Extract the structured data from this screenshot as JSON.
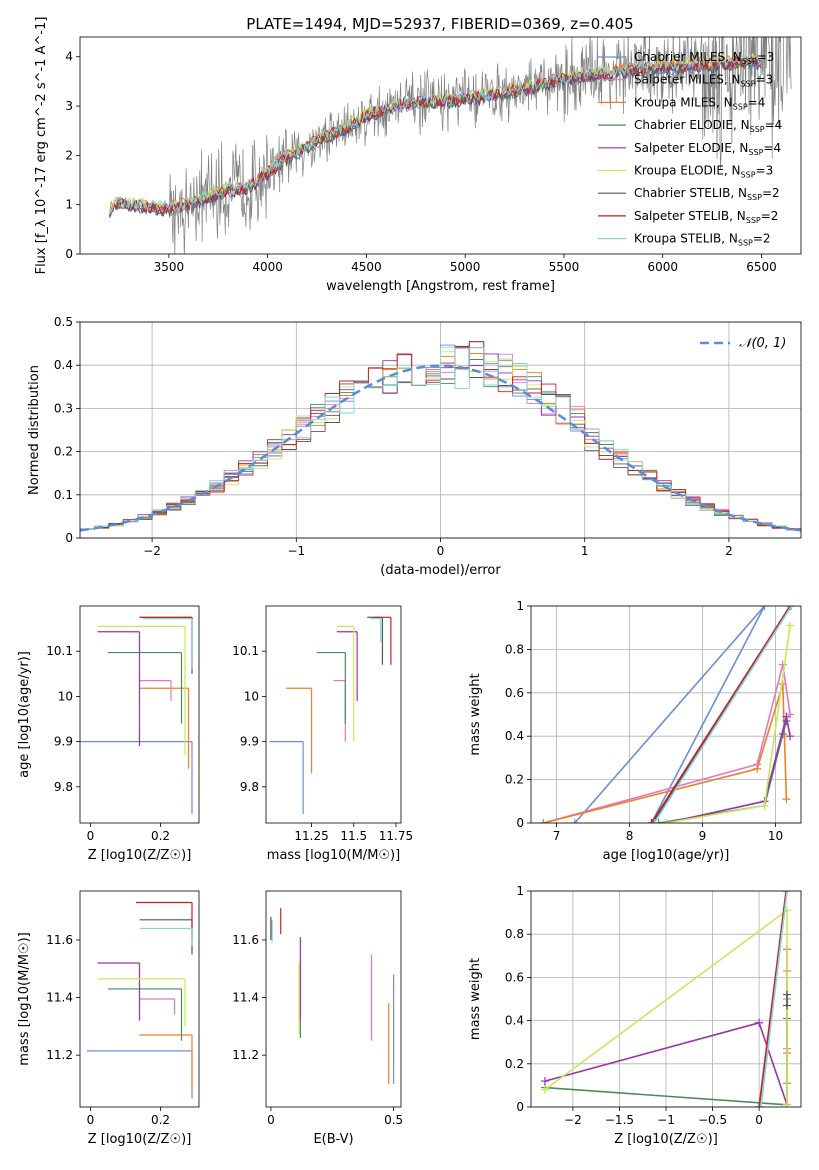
{
  "figure_title": "PLATE=1494, MJD=52937, FIBERID=0369, z=0.405",
  "colors": {
    "Chabrier MILES": "#6a8fd6",
    "Salpeter MILES": "#e377c2",
    "Kroupa MILES": "#f07f2a",
    "Chabrier ELODIE": "#4f8a5a",
    "Salpeter ELODIE": "#9b30b0",
    "Kroupa ELODIE": "#c8e85a",
    "Chabrier STELIB": "#555555",
    "Salpeter STELIB": "#cc1f1f",
    "Kroupa STELIB": "#7fd8d8",
    "data": "#7f7f7f",
    "normal": "#5b8bd9"
  },
  "chart_data": [
    {
      "id": "spectrum",
      "type": "line",
      "xlabel": "wavelength [Angstrom, rest frame]",
      "ylabel": "Flux [f_λ 10^-17 erg cm^-2 s^-1 A^-1]",
      "xlim": [
        3050,
        6700
      ],
      "ylim": [
        0,
        4.4
      ],
      "xticks": [
        3500,
        4000,
        4500,
        5000,
        5500,
        6000,
        6500
      ],
      "yticks": [
        0,
        1,
        2,
        3,
        4
      ],
      "legend": [
        "Chabrier MILES, N_SSP=3",
        "Salpeter MILES, N_SSP=3",
        "Kroupa MILES, N_SSP=4",
        "Chabrier ELODIE, N_SSP=4",
        "Salpeter ELODIE, N_SSP=4",
        "Kroupa ELODIE, N_SSP=3",
        "Chabrier STELIB, N_SSP=2",
        "Salpeter STELIB, N_SSP=2",
        "Kroupa STELIB, N_SSP=2"
      ],
      "legend_loc": "right",
      "model_continuum": {
        "x": [
          3200,
          3250,
          3300,
          3400,
          3500,
          3600,
          3700,
          3800,
          3900,
          4000,
          4100,
          4200,
          4300,
          4400,
          4500,
          4600,
          4700,
          4800,
          4900,
          5000,
          5100,
          5200,
          5300,
          5400,
          5500,
          5600,
          5700,
          5800,
          5900,
          6000,
          6100,
          6200,
          6300,
          6400,
          6500
        ],
        "y": [
          0.9,
          1.05,
          1.0,
          0.95,
          0.92,
          1.0,
          1.15,
          1.3,
          1.35,
          1.65,
          1.95,
          2.2,
          2.4,
          2.55,
          2.8,
          2.95,
          3.05,
          3.1,
          3.1,
          3.15,
          3.2,
          3.3,
          3.35,
          3.45,
          3.55,
          3.6,
          3.65,
          3.7,
          3.75,
          3.8,
          3.8,
          3.85,
          3.85,
          3.9,
          3.9
        ]
      }
    },
    {
      "id": "residuals",
      "type": "line",
      "xlabel": "(data-model)/error",
      "ylabel": "Normed distribution",
      "xlim": [
        -2.5,
        2.5
      ],
      "ylim": [
        0,
        0.5
      ],
      "xticks": [
        -2,
        -1,
        0,
        1,
        2
      ],
      "yticks": [
        0.0,
        0.1,
        0.2,
        0.3,
        0.4,
        0.5
      ],
      "legend": [
        "𝒩(0, 1)"
      ],
      "legend_loc": "top-right",
      "grid": true
    },
    {
      "id": "age_vs_Z",
      "type": "scatter",
      "xlabel": "Z [log10(Z/Z☉)]",
      "ylabel": "age  [log10(age/yr)]",
      "xlim": [
        -0.03,
        0.31
      ],
      "ylim": [
        9.72,
        10.2
      ],
      "xticks": [
        0.0,
        0.2
      ],
      "yticks": [
        9.8,
        9.9,
        10.0,
        10.1
      ],
      "points": [
        {
          "model": "Chabrier MILES",
          "x": 0.29,
          "y": 9.9,
          "xlo": -0.03,
          "ylo": 9.74
        },
        {
          "model": "Salpeter MILES",
          "x": 0.23,
          "y": 10.035,
          "xlo": 0.14,
          "ylo": 9.99
        },
        {
          "model": "Kroupa MILES",
          "x": 0.28,
          "y": 10.018,
          "xlo": 0.14,
          "ylo": 9.84
        },
        {
          "model": "Chabrier ELODIE",
          "x": 0.26,
          "y": 10.097,
          "xlo": 0.05,
          "ylo": 9.94
        },
        {
          "model": "Salpeter ELODIE",
          "x": 0.14,
          "y": 10.143,
          "xlo": 0.02,
          "ylo": 9.89
        },
        {
          "model": "Kroupa ELODIE",
          "x": 0.27,
          "y": 10.155,
          "xlo": 0.02,
          "ylo": 9.87
        },
        {
          "model": "Chabrier STELIB",
          "x": 0.29,
          "y": 10.175,
          "xlo": 0.14,
          "ylo": 10.05
        },
        {
          "model": "Salpeter STELIB",
          "x": 0.29,
          "y": 10.175,
          "xlo": 0.14,
          "ylo": 10.06
        },
        {
          "model": "Kroupa STELIB",
          "x": 0.29,
          "y": 10.172,
          "xlo": 0.15,
          "ylo": 10.06
        }
      ]
    },
    {
      "id": "age_vs_mass",
      "type": "scatter",
      "xlabel": "mass [log10(M/M☉)]",
      "ylabel": "",
      "xlim": [
        10.98,
        11.78
      ],
      "ylim": [
        9.72,
        10.2
      ],
      "xticks": [
        11.25,
        11.5,
        11.75
      ],
      "yticks": [
        9.8,
        9.9,
        10.0,
        10.1
      ],
      "points": [
        {
          "model": "Chabrier MILES",
          "x": 11.2,
          "y": 9.9,
          "xlo": 11.0,
          "ylo": 9.74
        },
        {
          "model": "Salpeter MILES",
          "x": 11.45,
          "y": 10.035,
          "xlo": 11.38,
          "ylo": 9.9
        },
        {
          "model": "Kroupa MILES",
          "x": 11.25,
          "y": 10.018,
          "xlo": 11.1,
          "ylo": 9.83
        },
        {
          "model": "Chabrier ELODIE",
          "x": 11.45,
          "y": 10.097,
          "xlo": 11.28,
          "ylo": 9.94
        },
        {
          "model": "Salpeter ELODIE",
          "x": 11.52,
          "y": 10.143,
          "xlo": 11.4,
          "ylo": 9.99
        },
        {
          "model": "Kroupa ELODIE",
          "x": 11.5,
          "y": 10.155,
          "xlo": 11.4,
          "ylo": 9.9
        },
        {
          "model": "Chabrier STELIB",
          "x": 11.67,
          "y": 10.175,
          "xlo": 11.58,
          "ylo": 10.07
        },
        {
          "model": "Salpeter STELIB",
          "x": 11.72,
          "y": 10.175,
          "xlo": 11.62,
          "ylo": 10.07
        },
        {
          "model": "Kroupa STELIB",
          "x": 11.66,
          "y": 10.172,
          "xlo": 11.6,
          "ylo": 10.12
        }
      ]
    },
    {
      "id": "weight_vs_age",
      "type": "line",
      "xlabel": "age  [log10(age/yr)]",
      "ylabel": "mass weight",
      "xlim": [
        6.65,
        10.35
      ],
      "ylim": [
        0,
        1.0
      ],
      "xticks": [
        7,
        8,
        9,
        10
      ],
      "yticks": [
        0.0,
        0.2,
        0.4,
        0.6,
        0.8,
        1.0
      ],
      "grid": true,
      "series": [
        {
          "model": "Chabrier MILES",
          "x": [
            7.25,
            9.85,
            8.3
          ],
          "y": [
            0.0,
            1.0,
            0.0
          ]
        },
        {
          "model": "Salpeter MILES",
          "x": [
            6.82,
            9.75,
            10.1,
            10.2
          ],
          "y": [
            0.0,
            0.27,
            0.73,
            0.5
          ]
        },
        {
          "model": "Kroupa MILES",
          "x": [
            6.82,
            9.75,
            10.1,
            10.15
          ],
          "y": [
            0.0,
            0.25,
            0.64,
            0.11
          ]
        },
        {
          "model": "Chabrier ELODIE",
          "x": [
            8.4,
            9.85,
            10.1,
            10.15
          ],
          "y": [
            0.0,
            0.08,
            0.41,
            0.47
          ]
        },
        {
          "model": "Salpeter ELODIE",
          "x": [
            8.5,
            9.85,
            10.15,
            10.2
          ],
          "y": [
            0.0,
            0.1,
            0.49,
            0.4
          ]
        },
        {
          "model": "Kroupa ELODIE",
          "x": [
            8.5,
            9.85,
            10.2
          ],
          "y": [
            0.0,
            0.08,
            0.91
          ]
        },
        {
          "model": "Chabrier STELIB",
          "x": [
            8.32,
            10.2
          ],
          "y": [
            0.0,
            1.0
          ]
        },
        {
          "model": "Salpeter STELIB",
          "x": [
            8.3,
            10.2
          ],
          "y": [
            0.0,
            1.0
          ]
        },
        {
          "model": "Kroupa STELIB",
          "x": [
            8.34,
            10.22
          ],
          "y": [
            0.0,
            1.0
          ]
        }
      ]
    },
    {
      "id": "mass_vs_Z",
      "type": "scatter",
      "xlabel": "Z [log10(Z/Z☉)]",
      "ylabel": "mass [log10(M/M☉)]",
      "xlim": [
        -0.03,
        0.31
      ],
      "ylim": [
        11.02,
        11.77
      ],
      "xticks": [
        0.0,
        0.2
      ],
      "yticks": [
        11.2,
        11.4,
        11.6
      ],
      "points": [
        {
          "model": "Chabrier MILES",
          "x": 0.29,
          "y": 11.215,
          "xlo": -0.01,
          "ylo": 11.05
        },
        {
          "model": "Salpeter MILES",
          "x": 0.24,
          "y": 11.395,
          "xlo": 0.14,
          "ylo": 11.34
        },
        {
          "model": "Kroupa MILES",
          "x": 0.29,
          "y": 11.27,
          "xlo": 0.14,
          "ylo": 11.08
        },
        {
          "model": "Chabrier ELODIE",
          "x": 0.26,
          "y": 11.43,
          "xlo": 0.05,
          "ylo": 11.25
        },
        {
          "model": "Salpeter ELODIE",
          "x": 0.14,
          "y": 11.52,
          "xlo": 0.02,
          "ylo": 11.32
        },
        {
          "model": "Kroupa ELODIE",
          "x": 0.27,
          "y": 11.465,
          "xlo": 0.02,
          "ylo": 11.3
        },
        {
          "model": "Chabrier STELIB",
          "x": 0.29,
          "y": 11.67,
          "xlo": 0.14,
          "ylo": 11.55
        },
        {
          "model": "Salpeter STELIB",
          "x": 0.29,
          "y": 11.73,
          "xlo": 0.13,
          "ylo": 11.6
        },
        {
          "model": "Kroupa STELIB",
          "x": 0.29,
          "y": 11.64,
          "xlo": 0.14,
          "ylo": 11.58
        }
      ]
    },
    {
      "id": "mass_vs_ebv",
      "type": "scatter",
      "xlabel": "E(B-V)",
      "ylabel": "",
      "xlim": [
        -0.02,
        0.53
      ],
      "ylim": [
        11.02,
        11.77
      ],
      "xticks": [
        0.0,
        0.5
      ],
      "yticks": [
        11.2,
        11.4,
        11.6
      ],
      "points": [
        {
          "model": "Chabrier MILES",
          "x": 0.5,
          "y": 11.3,
          "ylo": 11.1,
          "yhi": 11.48
        },
        {
          "model": "Salpeter MILES",
          "x": 0.41,
          "y": 11.36,
          "ylo": 11.25,
          "yhi": 11.55
        },
        {
          "model": "Kroupa MILES",
          "x": 0.48,
          "y": 11.25,
          "ylo": 11.1,
          "yhi": 11.38
        },
        {
          "model": "Chabrier ELODIE",
          "x": 0.12,
          "y": 11.45,
          "ylo": 11.26,
          "yhi": 11.53
        },
        {
          "model": "Salpeter ELODIE",
          "x": 0.12,
          "y": 11.5,
          "ylo": 11.32,
          "yhi": 11.61
        },
        {
          "model": "Kroupa ELODIE",
          "x": 0.115,
          "y": 11.4,
          "ylo": 11.27,
          "yhi": 11.52
        },
        {
          "model": "Chabrier STELIB",
          "x": 0.0,
          "y": 11.66,
          "ylo": 11.6,
          "yhi": 11.68
        },
        {
          "model": "Salpeter STELIB",
          "x": 0.04,
          "y": 11.66,
          "ylo": 11.62,
          "yhi": 11.71
        },
        {
          "model": "Kroupa STELIB",
          "x": 0.005,
          "y": 11.63,
          "ylo": 11.59,
          "yhi": 11.67
        }
      ]
    },
    {
      "id": "weight_vs_Z",
      "type": "line",
      "xlabel": "Z [log10(Z/Z☉)]",
      "ylabel": "mass weight",
      "xlim": [
        -2.45,
        0.45
      ],
      "ylim": [
        0,
        1.0
      ],
      "xticks": [
        -2.0,
        -1.5,
        -1.0,
        -0.5,
        0.0
      ],
      "yticks": [
        0.0,
        0.2,
        0.4,
        0.6,
        0.8,
        1.0
      ],
      "grid": true,
      "series": [
        {
          "model": "Chabrier MILES",
          "x": [
            0.0,
            0.3
          ],
          "y": [
            0.0,
            1.0
          ]
        },
        {
          "model": "Salpeter MILES",
          "x": [
            0.3,
            0.3,
            0.3
          ],
          "y": [
            0.27,
            0.5,
            0.73
          ]
        },
        {
          "model": "Kroupa MILES",
          "x": [
            0.3,
            0.3,
            0.3,
            0.3
          ],
          "y": [
            0.11,
            0.25,
            0.63,
            0.73
          ]
        },
        {
          "model": "Chabrier ELODIE",
          "x": [
            -2.3,
            0.3,
            0.3
          ],
          "y": [
            0.09,
            0.01,
            0.41
          ]
        },
        {
          "model": "Salpeter ELODIE",
          "x": [
            -2.3,
            0.0,
            0.3
          ],
          "y": [
            0.12,
            0.39,
            0.01
          ]
        },
        {
          "model": "Kroupa ELODIE",
          "x": [
            -2.3,
            0.3,
            0.3
          ],
          "y": [
            0.08,
            0.91,
            0.01
          ]
        },
        {
          "model": "Chabrier STELIB",
          "x": [
            0.3,
            0.3
          ],
          "y": [
            0.47,
            0.52
          ]
        },
        {
          "model": "Salpeter STELIB",
          "x": [
            0.0,
            0.29
          ],
          "y": [
            0.0,
            1.0
          ]
        },
        {
          "model": "Kroupa STELIB",
          "x": [
            0.02,
            0.3
          ],
          "y": [
            0.0,
            1.0
          ]
        }
      ]
    }
  ]
}
